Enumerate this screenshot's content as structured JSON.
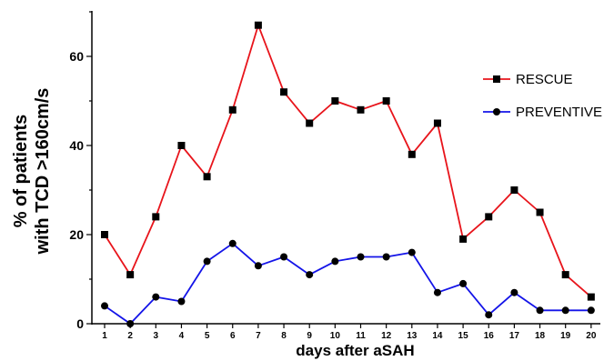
{
  "chart_data": {
    "type": "line",
    "title": "",
    "xlabel": "days after aSAH",
    "ylabel_lines": [
      "% of patients",
      "with TCD >160cm/s"
    ],
    "x": [
      1,
      2,
      3,
      4,
      5,
      6,
      7,
      8,
      9,
      10,
      11,
      12,
      13,
      14,
      15,
      16,
      17,
      18,
      19,
      20
    ],
    "x_tick_labels": [
      "1",
      "2",
      "3",
      "4",
      "5",
      "6",
      "7",
      "8",
      "9",
      "10",
      "11",
      "12",
      "13",
      "14",
      "15",
      "16",
      "17",
      "18",
      "19",
      "20"
    ],
    "ylim": [
      0,
      70
    ],
    "y_ticks": [
      0,
      20,
      40,
      60
    ],
    "y_tick_labels": [
      "0",
      "20",
      "40",
      "60"
    ],
    "grid": false,
    "legend_position": "right",
    "series": [
      {
        "name": "RESCUE",
        "color": "#e8141b",
        "marker": "square",
        "values": [
          20,
          11,
          24,
          40,
          33,
          48,
          67,
          52,
          45,
          50,
          48,
          50,
          38,
          45,
          19,
          24,
          30,
          25,
          11,
          6
        ]
      },
      {
        "name": "PREVENTIVE",
        "color": "#1414e8",
        "marker": "circle",
        "values": [
          4,
          0,
          6,
          5,
          14,
          18,
          13,
          15,
          11,
          14,
          15,
          15,
          16,
          7,
          9,
          2,
          7,
          3,
          3,
          3
        ]
      }
    ]
  }
}
